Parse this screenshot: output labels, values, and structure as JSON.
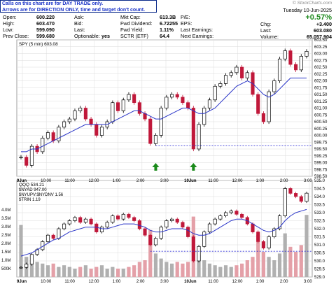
{
  "note": {
    "line1": "Calls on this chart are for DAY TRADE only.",
    "line2": "Arrows are for DIRECTION ONLY, time and target don't count."
  },
  "brand": "© StockCharts.com",
  "quote": {
    "date": "Tuesday 10-Jun-2025",
    "change_pct": "+0.57%",
    "chg_label": "Chg:",
    "chg_value": "+3.400",
    "last_earnings_label": "Last Earnings:",
    "last_label2": "Last:",
    "last_value2": "603.080",
    "volume_label": "Volume:",
    "volume_value": "65,057,904"
  },
  "stats": {
    "rows": [
      {
        "l1": "Open:",
        "v1": "600.220",
        "l2": "Ask:",
        "v2": "",
        "l3": "Mkt Cap:",
        "v3": "613.3B",
        "l4": "P/E:"
      },
      {
        "l1": "High:",
        "v1": "603.470",
        "l2": "Bid:",
        "v2": "",
        "l3": "Fwd Dividend:",
        "v3": "6.72255",
        "l4": "EPS:"
      },
      {
        "l1": "Low:",
        "v1": "599.090",
        "l2": "Last:",
        "v2": "",
        "l3": "Fwd Yield:",
        "v3": "1.11%",
        "l4": "Last Earnings:"
      },
      {
        "l1": "Prev Close:",
        "v1": "599.680",
        "l2": "Optionable:",
        "v2": "yes",
        "l3": "SCTR (ETF)",
        "v3": "64.4",
        "l4": "Next Earnings:"
      }
    ]
  },
  "colors": {
    "up": "#000000",
    "down": "#c0183a",
    "ma": "#2a35c8",
    "dotted": "#3535d6",
    "arrow": "#1a8a1a",
    "vol": "#b0b0b0",
    "volred": "#e4a0a8",
    "grid": "#dcdcdc"
  },
  "chart_data": [
    {
      "type": "line",
      "title": "SPY (5 min) 603.08",
      "ylim": [
        598.5,
        603.5
      ],
      "y_ticks": [
        "603.50",
        "603.25",
        "603.00",
        "602.75",
        "602.50",
        "602.25",
        "602.00",
        "601.75",
        "601.50",
        "601.25",
        "601.00",
        "600.75",
        "600.50",
        "600.25",
        "600.00",
        "599.75",
        "599.50",
        "599.25",
        "599.00",
        "598.75",
        "598.50"
      ],
      "x_ticks": [
        "9Jun",
        "10:00",
        "11:00",
        "12:00",
        "1:00",
        "2:00",
        "3:00",
        "10Jun",
        "11:00",
        "12:00",
        "1:00",
        "2:00",
        "3:00"
      ],
      "series": [
        {
          "values": [
            599.2,
            598.9,
            599.6,
            599.4,
            599.9,
            600.1,
            599.8,
            600.3,
            600.5,
            600.6,
            600.9,
            601.0,
            600.6,
            600.4,
            600.0,
            600.3,
            600.5,
            601.2,
            600.9,
            601.3,
            601.5,
            601.2,
            600.8,
            600.6,
            599.7,
            600.0,
            601.0,
            601.4,
            601.5,
            601.4,
            601.2,
            601.0,
            599.5,
            600.4,
            601.0,
            601.3,
            601.8,
            601.9,
            602.2,
            602.3,
            602.5,
            602.1,
            602.3,
            601.5,
            600.8,
            600.5,
            601.6,
            602.0,
            602.8,
            603.1,
            602.6,
            602.4,
            602.9,
            603.08
          ]
        },
        {
          "values": [
            599.4,
            599.4,
            599.5,
            599.5,
            599.6,
            599.7,
            599.8,
            599.9,
            600.0,
            600.1,
            600.2,
            600.3,
            600.4,
            600.4,
            600.4,
            600.4,
            600.4,
            600.5,
            600.6,
            600.7,
            600.8,
            600.9,
            600.9,
            600.8,
            600.7,
            600.6,
            600.6,
            600.7,
            600.8,
            600.9,
            601.0,
            601.0,
            600.9,
            600.8,
            600.8,
            600.9,
            601.0,
            601.2,
            601.4,
            601.6,
            601.8,
            601.9,
            602.0,
            601.9,
            601.7,
            601.5,
            601.4,
            601.5,
            601.7,
            601.9,
            602.1,
            602.1,
            602.1,
            602.1
          ]
        }
      ],
      "annotations": {
        "level": 599.62,
        "arrow_days_index": [
          25,
          32
        ]
      }
    },
    {
      "type": "line",
      "title": "QQQ 534.21",
      "legend": [
        "$NYAD 947.00",
        "$NYUPV:$NYDNV 1.56",
        "$TRIN 1.19"
      ],
      "ylim": [
        529.0,
        535.0
      ],
      "y_ticks": [
        "535.0",
        "534.5",
        "534.0",
        "533.5",
        "533.0",
        "532.5",
        "532.0",
        "531.5",
        "531.0",
        "530.5",
        "530.0",
        "529.5",
        "529.0"
      ],
      "vol_ticks": [
        "4.0M",
        "3.5M",
        "3.0M",
        "2.5M",
        "2.0M",
        "1.5M",
        "1.0M",
        "500K"
      ],
      "series": [
        {
          "values": [
            529.6,
            529.8,
            530.4,
            530.7,
            531.2,
            531.6,
            531.4,
            532.0,
            532.3,
            532.5,
            532.7,
            532.4,
            532.6,
            532.3,
            531.8,
            532.1,
            532.4,
            532.8,
            532.6,
            532.9,
            532.7,
            532.5,
            532.0,
            531.6,
            531.0,
            531.4,
            532.1,
            532.5,
            532.6,
            532.4,
            532.1,
            531.5,
            530.0,
            530.9,
            531.8,
            532.3,
            532.6,
            532.8,
            533.0,
            533.1,
            532.9,
            532.7,
            532.3,
            531.8,
            531.2,
            530.8,
            531.5,
            532.0,
            532.8,
            534.5,
            534.2,
            534.0,
            533.7,
            534.21
          ]
        },
        {
          "values": [
            530.3,
            530.4,
            530.5,
            530.7,
            530.9,
            531.1,
            531.3,
            531.4,
            531.6,
            531.8,
            531.9,
            532.0,
            532.1,
            532.1,
            532.1,
            532.0,
            532.0,
            532.1,
            532.2,
            532.3,
            532.3,
            532.3,
            532.2,
            532.1,
            531.9,
            531.8,
            531.8,
            531.9,
            532.0,
            532.0,
            532.0,
            531.9,
            531.7,
            531.6,
            531.6,
            531.7,
            531.9,
            532.1,
            532.3,
            532.5,
            532.6,
            532.6,
            532.5,
            532.3,
            532.1,
            531.9,
            531.8,
            531.9,
            532.1,
            532.5,
            532.8,
            533.0,
            533.1,
            533.2
          ]
        }
      ],
      "volume": [
        3.1,
        1.2,
        1.0,
        0.9,
        0.8,
        0.7,
        0.8,
        0.6,
        0.7,
        0.6,
        0.5,
        0.6,
        0.7,
        0.5,
        0.6,
        0.7,
        0.5,
        0.6,
        0.5,
        0.5,
        0.6,
        0.7,
        0.9,
        1.0,
        2.8,
        1.4,
        1.1,
        0.9,
        0.8,
        0.9,
        0.8,
        0.9,
        3.6,
        1.3,
        1.0,
        0.8,
        0.7,
        0.6,
        0.7,
        0.6,
        0.7,
        0.8,
        1.0,
        1.2,
        2.5,
        1.5,
        1.2,
        1.0,
        1.4,
        2.6,
        1.8,
        1.5,
        1.9,
        3.7
      ],
      "annotations": {
        "level": 530.6
      }
    }
  ]
}
